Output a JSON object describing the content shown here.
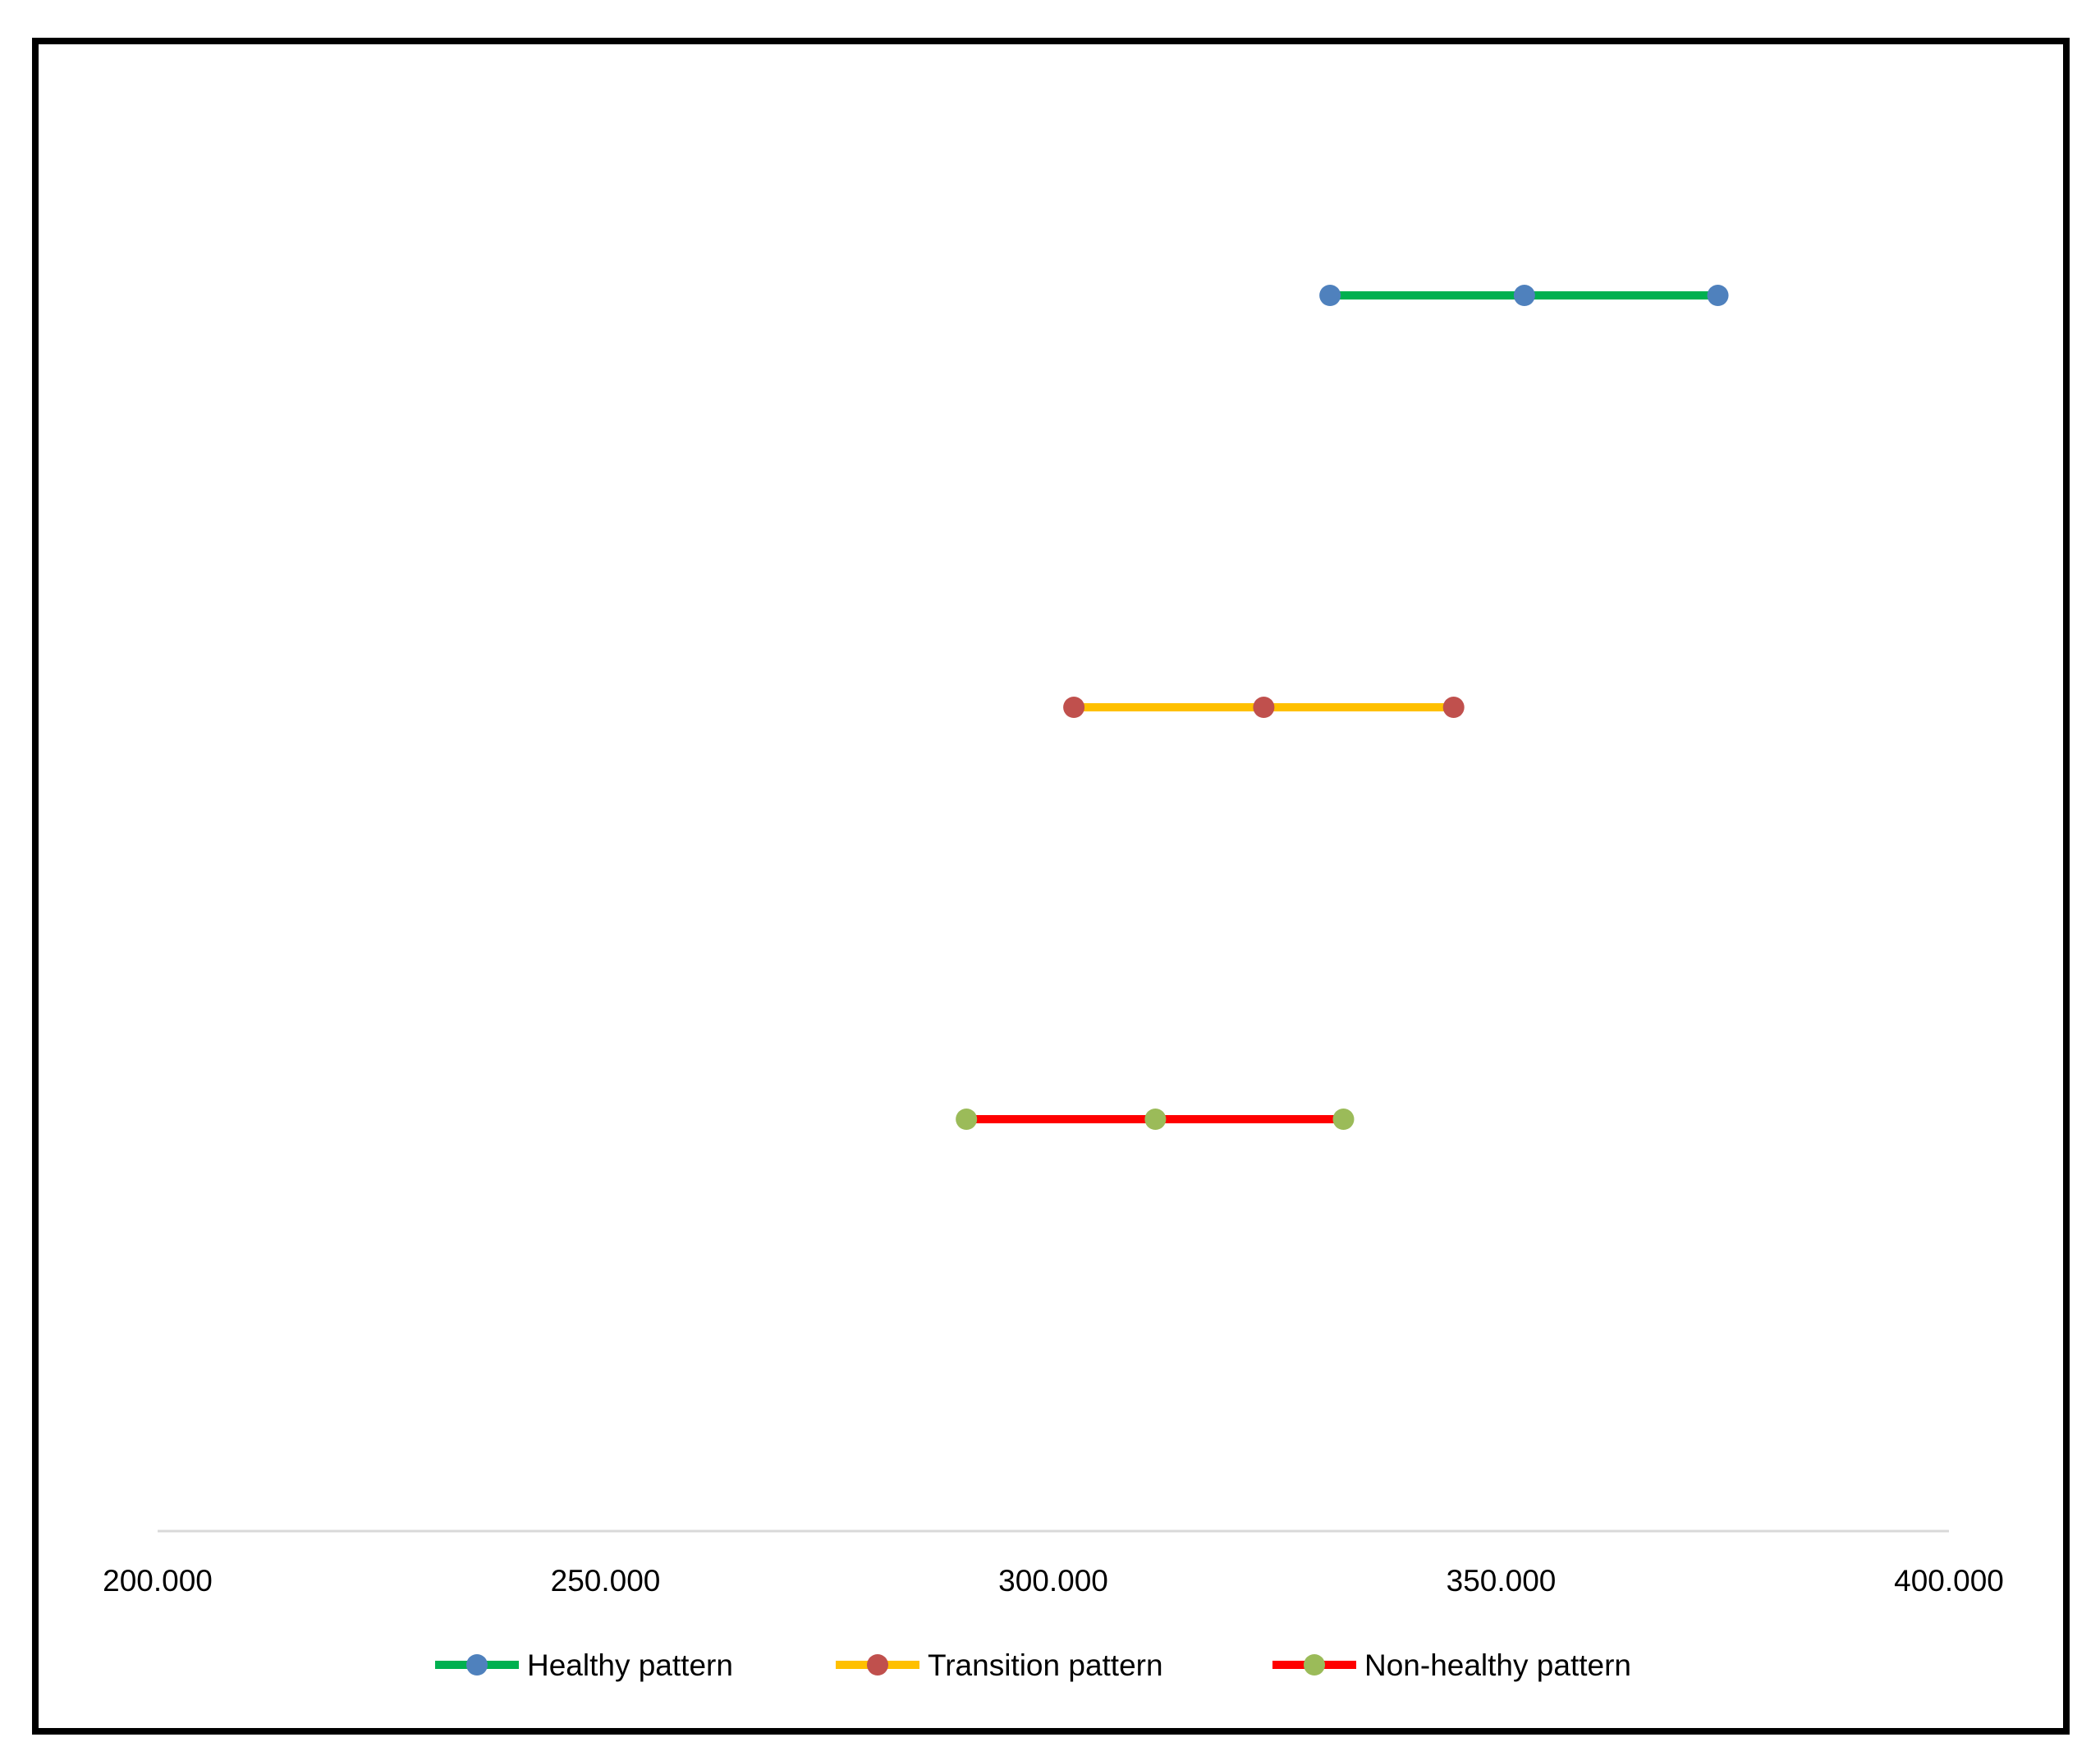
{
  "chart_data": {
    "type": "dot_range",
    "xlim": [
      200.0,
      400.0
    ],
    "x_ticks": [
      "200.000",
      "250.000",
      "300.000",
      "350.000",
      "400.000"
    ],
    "x_tick_values": [
      200,
      250,
      300,
      350,
      400
    ],
    "grid": false,
    "legend_position": "bottom",
    "series": [
      {
        "name": "Healthy pattern",
        "values": [
          330.9,
          352.6,
          374.2
        ],
        "line_color": "#00b050",
        "marker_color": "#4f81bd"
      },
      {
        "name": "Transition pattern",
        "values": [
          302.3,
          323.5,
          344.7
        ],
        "line_color": "#ffc000",
        "marker_color": "#c0504d"
      },
      {
        "name": "Non-healthy pattern",
        "values": [
          290.3,
          311.4,
          332.4
        ],
        "line_color": "#ff0000",
        "marker_color": "#9bbb59"
      }
    ],
    "axis_color": "#d9d9d9",
    "frame_color": "#000000"
  }
}
